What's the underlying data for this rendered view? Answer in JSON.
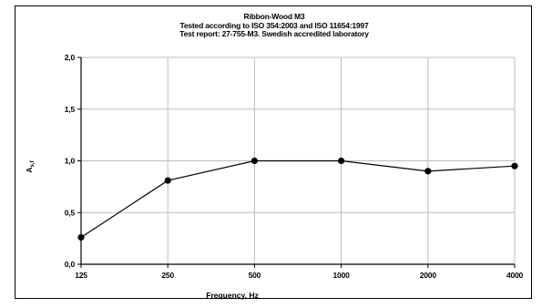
{
  "chart_data": {
    "type": "line",
    "title": "Ribbon-Wood M3",
    "subtitle_lines": [
      "Tested according to ISO 354:2003 and ISO 11654:1997",
      "Test report: 27-755-M3. Swedish accredited laboratory"
    ],
    "xlabel": "Frequency, Hz",
    "ylabel_main": "A",
    "ylabel_sub": "s,f",
    "categories": [
      "125",
      "250",
      "500",
      "1000",
      "2000",
      "4000"
    ],
    "y_tick_labels": [
      "0,0",
      "0,5",
      "1,0",
      "1,5",
      "2,0"
    ],
    "ylim": [
      0,
      2
    ],
    "y_ticks": [
      0,
      0.5,
      1.0,
      1.5,
      2.0
    ],
    "grid": true,
    "series": [
      {
        "values": [
          0.26,
          0.81,
          1.0,
          1.0,
          0.9,
          0.95
        ]
      }
    ],
    "colors": {
      "line": "#000000",
      "grid": "#bdbdbd",
      "axis": "#000000"
    }
  }
}
